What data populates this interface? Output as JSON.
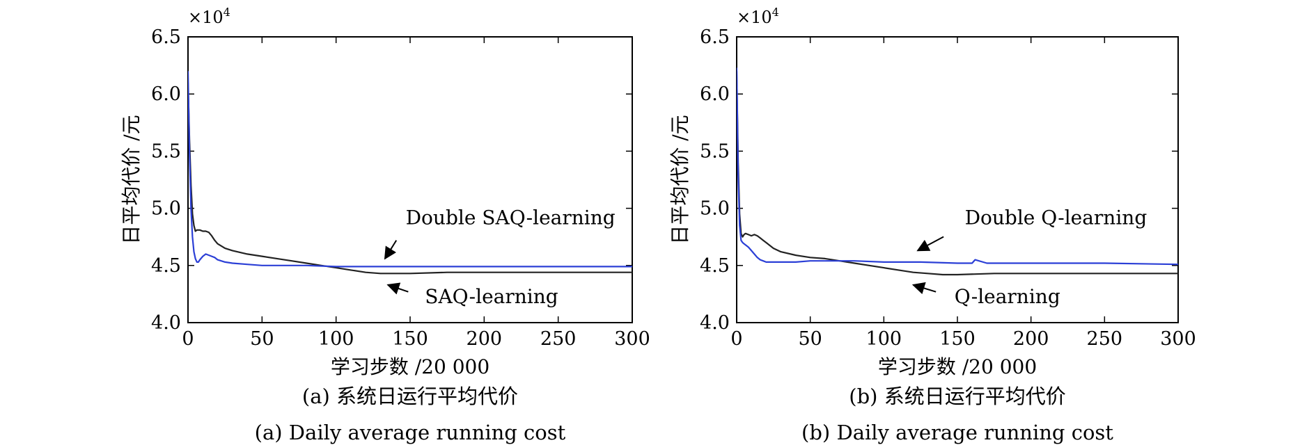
{
  "chart_data": [
    {
      "type": "line",
      "caption_zh": "(a) 系统日运行平均代价",
      "caption_en": "(a) Daily average running cost",
      "xlabel": "学习步数 /20 000",
      "ylabel": "日平均代价 /元",
      "y_multiplier": "×10",
      "y_multiplier_exp": "4",
      "xlim": [
        0,
        300
      ],
      "ylim": [
        4.0,
        6.5
      ],
      "xticks": [
        "0",
        "50",
        "100",
        "150",
        "200",
        "250",
        "300"
      ],
      "yticks": [
        "4.0",
        "4.5",
        "5.0",
        "5.5",
        "6.0",
        "6.5"
      ],
      "grid": false,
      "series": [
        {
          "name": "SAQ-learning",
          "color": "#222222",
          "x": [
            0,
            1,
            2,
            3,
            4,
            5,
            6,
            8,
            10,
            12,
            14,
            16,
            18,
            20,
            25,
            30,
            40,
            50,
            60,
            70,
            80,
            90,
            100,
            110,
            120,
            130,
            140,
            150,
            175,
            200,
            250,
            300
          ],
          "y": [
            6.1,
            5.6,
            5.2,
            4.95,
            4.85,
            4.8,
            4.81,
            4.81,
            4.8,
            4.8,
            4.79,
            4.76,
            4.72,
            4.69,
            4.65,
            4.63,
            4.6,
            4.58,
            4.56,
            4.54,
            4.52,
            4.5,
            4.48,
            4.46,
            4.44,
            4.43,
            4.43,
            4.43,
            4.44,
            4.44,
            4.44,
            4.44
          ]
        },
        {
          "name": "Double SAQ-learning",
          "color": "#2b3fd6",
          "x": [
            0,
            1,
            2,
            3,
            4,
            5,
            6,
            7,
            8,
            10,
            12,
            14,
            16,
            18,
            20,
            25,
            30,
            40,
            50,
            60,
            80,
            100,
            125,
            150,
            200,
            250,
            300
          ],
          "y": [
            6.2,
            5.5,
            5.0,
            4.75,
            4.62,
            4.56,
            4.53,
            4.53,
            4.55,
            4.58,
            4.6,
            4.59,
            4.58,
            4.57,
            4.55,
            4.53,
            4.52,
            4.51,
            4.5,
            4.5,
            4.5,
            4.49,
            4.49,
            4.49,
            4.49,
            4.49,
            4.49
          ]
        }
      ],
      "annotations": [
        {
          "text": "Double SAQ-learning",
          "target": [
            133,
            4.56
          ],
          "label_pos": [
            147,
            4.85
          ]
        },
        {
          "text": "SAQ-learning",
          "target": [
            135,
            4.33
          ],
          "label_pos": [
            160,
            4.22
          ]
        }
      ]
    },
    {
      "type": "line",
      "caption_zh": "(b) 系统日运行平均代价",
      "caption_en": "(b) Daily average running cost",
      "xlabel": "学习步数 /20 000",
      "ylabel": "日平均代价 /元",
      "y_multiplier": "×10",
      "y_multiplier_exp": "4",
      "xlim": [
        0,
        300
      ],
      "ylim": [
        4.0,
        6.5
      ],
      "xticks": [
        "0",
        "50",
        "100",
        "150",
        "200",
        "250",
        "300"
      ],
      "yticks": [
        "4.0",
        "4.5",
        "5.0",
        "5.5",
        "6.0",
        "6.5"
      ],
      "grid": false,
      "series": [
        {
          "name": "Q-learning",
          "color": "#222222",
          "x": [
            0,
            1,
            2,
            3,
            4,
            5,
            6,
            8,
            10,
            12,
            14,
            16,
            18,
            20,
            25,
            30,
            40,
            50,
            60,
            70,
            80,
            90,
            100,
            110,
            120,
            130,
            140,
            150,
            175,
            200,
            250,
            300
          ],
          "y": [
            6.2,
            5.4,
            4.95,
            4.78,
            4.75,
            4.77,
            4.78,
            4.77,
            4.76,
            4.77,
            4.76,
            4.74,
            4.72,
            4.7,
            4.65,
            4.62,
            4.59,
            4.57,
            4.56,
            4.54,
            4.52,
            4.5,
            4.48,
            4.46,
            4.44,
            4.43,
            4.42,
            4.42,
            4.43,
            4.43,
            4.43,
            4.43
          ]
        },
        {
          "name": "Double Q-learning",
          "color": "#2b3fd6",
          "x": [
            0,
            1,
            2,
            3,
            4,
            5,
            6,
            8,
            10,
            12,
            14,
            16,
            18,
            20,
            25,
            30,
            40,
            50,
            60,
            80,
            100,
            125,
            150,
            160,
            162,
            170,
            200,
            250,
            300
          ],
          "y": [
            6.23,
            5.3,
            4.85,
            4.72,
            4.7,
            4.69,
            4.68,
            4.66,
            4.63,
            4.6,
            4.57,
            4.55,
            4.54,
            4.53,
            4.53,
            4.53,
            4.53,
            4.54,
            4.54,
            4.54,
            4.53,
            4.53,
            4.52,
            4.52,
            4.55,
            4.52,
            4.52,
            4.52,
            4.51
          ]
        }
      ],
      "annotations": [
        {
          "text": "Double Q-learning",
          "target": [
            123,
            4.63
          ],
          "label_pos": [
            155,
            4.85
          ]
        },
        {
          "text": "Q-learning",
          "target": [
            120,
            4.33
          ],
          "label_pos": [
            148,
            4.22
          ]
        }
      ]
    }
  ]
}
